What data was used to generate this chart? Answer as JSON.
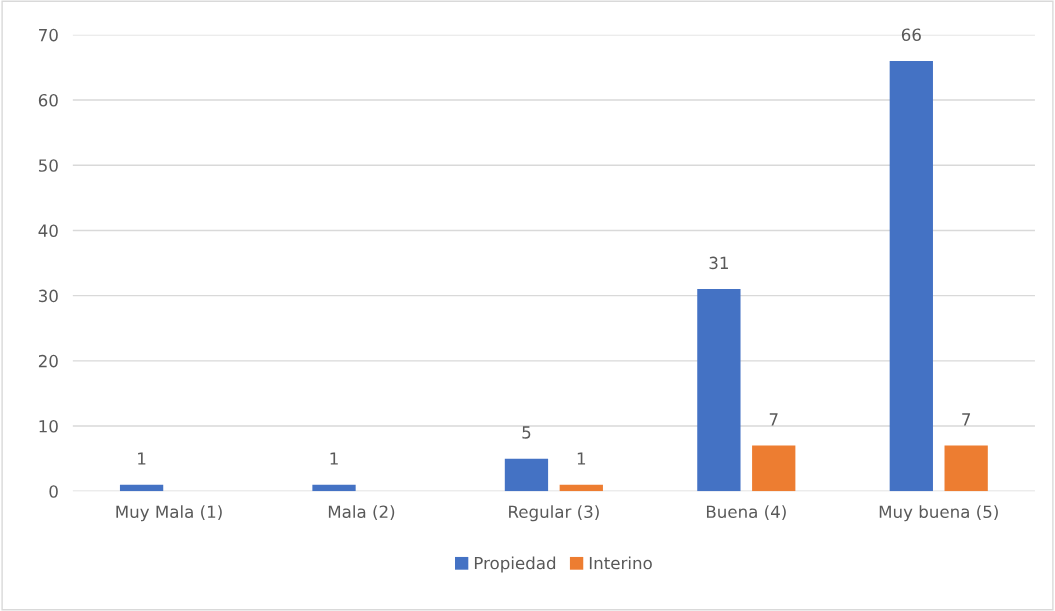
{
  "chart_data": {
    "type": "bar",
    "categories": [
      "Muy Mala (1)",
      "Mala (2)",
      "Regular (3)",
      "Buena (4)",
      "Muy buena (5)"
    ],
    "series": [
      {
        "name": "Propiedad",
        "color": "#4472c4",
        "values": [
          1,
          1,
          5,
          31,
          66
        ]
      },
      {
        "name": "Interino",
        "color": "#ed7d31",
        "values": [
          null,
          null,
          1,
          7,
          7
        ]
      }
    ],
    "ylim": [
      0,
      70
    ],
    "yticks": [
      0,
      10,
      20,
      30,
      40,
      50,
      60,
      70
    ],
    "grid": "y",
    "legend": "bottom",
    "data_labels": true
  }
}
